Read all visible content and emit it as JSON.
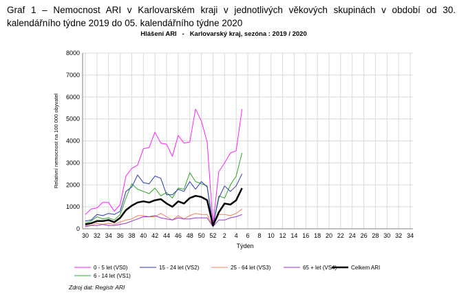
{
  "caption": "Graf 1 – Nemocnost ARI v Karlovarském kraji v jednotlivých věkových skupinách v období od 30. kalendářního týdne 2019 do 05. kalendářního týdne 2020",
  "source": "Zdroj dat: Registr ARI",
  "chart_data": {
    "type": "line",
    "title": "Hlášení ARI   -   Karlovarský kraj, sezóna : 2019 / 2020",
    "xlabel": "Týden",
    "ylabel": "Relativní nemocnost na 100 000 obyvatel",
    "ylim": [
      0,
      8000
    ],
    "yticks": [
      0,
      1000,
      2000,
      3000,
      4000,
      5000,
      6000,
      7000,
      8000
    ],
    "grid": true,
    "legend_position": "bottom",
    "x": [
      30,
      31,
      32,
      33,
      34,
      35,
      36,
      37,
      38,
      39,
      40,
      41,
      42,
      43,
      44,
      45,
      46,
      47,
      48,
      49,
      50,
      51,
      52,
      1,
      2,
      3,
      4,
      5
    ],
    "x_tick_labels": [
      "30",
      "32",
      "34",
      "36",
      "38",
      "40",
      "42",
      "44",
      "46",
      "48",
      "50",
      "52",
      "2",
      "4",
      "6",
      "8",
      "10",
      "12",
      "14",
      "16",
      "18",
      "20",
      "22",
      "24",
      "26",
      "28",
      "30",
      "32",
      "34"
    ],
    "series": [
      {
        "name": "0 - 5 let (VS0)",
        "color": "#ff22ff",
        "width": 1,
        "values": [
          650,
          900,
          950,
          1200,
          1200,
          800,
          1100,
          2400,
          2750,
          2900,
          3650,
          3700,
          4400,
          3900,
          3850,
          3300,
          4250,
          3900,
          3950,
          5450,
          4900,
          3950,
          200,
          2600,
          3000,
          3450,
          3550,
          5450
        ]
      },
      {
        "name": "6 - 14 let (VS1)",
        "color": "#33a02c",
        "width": 1,
        "values": [
          250,
          350,
          550,
          450,
          500,
          400,
          650,
          1400,
          2050,
          1800,
          1700,
          1600,
          1850,
          1500,
          1650,
          1400,
          1850,
          1800,
          2550,
          2150,
          2050,
          1950,
          150,
          1500,
          1400,
          2000,
          2400,
          3450
        ]
      },
      {
        "name": "15 - 24 let (VS2)",
        "color": "#2b3aa8",
        "width": 1,
        "values": [
          350,
          400,
          650,
          600,
          700,
          650,
          800,
          1700,
          1900,
          2450,
          2100,
          2050,
          2400,
          2300,
          1550,
          1550,
          1800,
          1700,
          2150,
          1800,
          2150,
          1900,
          150,
          1400,
          1950,
          1700,
          1950,
          2500
        ]
      },
      {
        "name": "25 - 64 let (VS3)",
        "color": "#f08060",
        "width": 1,
        "values": [
          150,
          150,
          250,
          200,
          250,
          200,
          300,
          400,
          450,
          600,
          600,
          550,
          550,
          700,
          550,
          400,
          600,
          450,
          600,
          700,
          650,
          650,
          100,
          650,
          650,
          600,
          700,
          900
        ]
      },
      {
        "name": "65 + let (VS4)",
        "color": "#9933cc",
        "width": 1,
        "values": [
          100,
          150,
          150,
          200,
          150,
          150,
          200,
          250,
          350,
          450,
          550,
          550,
          600,
          500,
          450,
          400,
          500,
          450,
          450,
          500,
          500,
          500,
          100,
          400,
          400,
          500,
          550,
          650
        ]
      },
      {
        "name": "Celkem ARI",
        "color": "#000000",
        "width": 2.5,
        "values": [
          200,
          250,
          350,
          350,
          400,
          300,
          500,
          850,
          1050,
          1200,
          1250,
          1200,
          1300,
          1350,
          1150,
          1000,
          1250,
          1150,
          1400,
          1500,
          1450,
          1300,
          150,
          750,
          1150,
          1100,
          1300,
          1850
        ]
      }
    ]
  }
}
